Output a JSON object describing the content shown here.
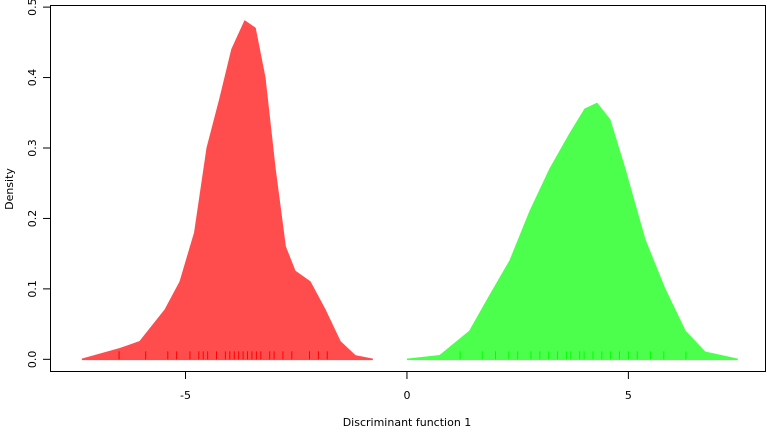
{
  "chart_data": {
    "type": "area",
    "xlabel": "Discriminant function 1",
    "ylabel": "Density",
    "xlim": [
      -8.06,
      8.13
    ],
    "ylim": [
      -0.018,
      0.503
    ],
    "xticks": [
      -5,
      0,
      5
    ],
    "yticks": [
      {
        "value": 0,
        "label": "0.0"
      },
      0.1,
      0.2,
      0.3,
      0.4,
      0.5
    ],
    "series": [
      {
        "color": "#ff4d4d",
        "x": [
          -7.34,
          -6.48,
          -6.03,
          -5.46,
          -5.12,
          -4.79,
          -4.51,
          -4.22,
          -3.95,
          -3.66,
          -3.43,
          -3.21,
          -2.98,
          -2.75,
          -2.53,
          -2.19,
          -1.85,
          -1.51,
          -1.17,
          -0.77
        ],
        "values": [
          0,
          0.015,
          0.025,
          0.07,
          0.11,
          0.18,
          0.3,
          0.37,
          0.44,
          0.48,
          0.47,
          0.4,
          0.27,
          0.16,
          0.125,
          0.11,
          0.07,
          0.025,
          0.005,
          0
        ],
        "rug_color": "#ff0000",
        "rug": [
          -6.5,
          -5.9,
          -5.4,
          -5.2,
          -4.9,
          -4.7,
          -4.6,
          -4.5,
          -4.3,
          -4.1,
          -4.0,
          -3.9,
          -3.8,
          -3.7,
          -3.6,
          -3.5,
          -3.4,
          -3.3,
          -3.1,
          -3.0,
          -2.8,
          -2.6,
          -2.2,
          -2.0,
          -1.8
        ]
      },
      {
        "color": "#4dff4d",
        "x": [
          0,
          0.74,
          1.42,
          1.87,
          2.33,
          2.78,
          3.23,
          3.68,
          4.02,
          4.29,
          4.58,
          4.92,
          5.37,
          5.82,
          6.28,
          6.73,
          7.47
        ],
        "values": [
          0,
          0.005,
          0.04,
          0.09,
          0.14,
          0.21,
          0.27,
          0.32,
          0.355,
          0.363,
          0.34,
          0.27,
          0.17,
          0.1,
          0.04,
          0.01,
          0
        ],
        "rug_color": "#00ff00",
        "rug": [
          1.2,
          1.7,
          2.0,
          2.3,
          2.5,
          2.8,
          3.0,
          3.2,
          3.4,
          3.6,
          3.7,
          3.9,
          4.0,
          4.2,
          4.4,
          4.6,
          4.8,
          5.0,
          5.2,
          5.5,
          5.8,
          6.3
        ]
      }
    ]
  }
}
